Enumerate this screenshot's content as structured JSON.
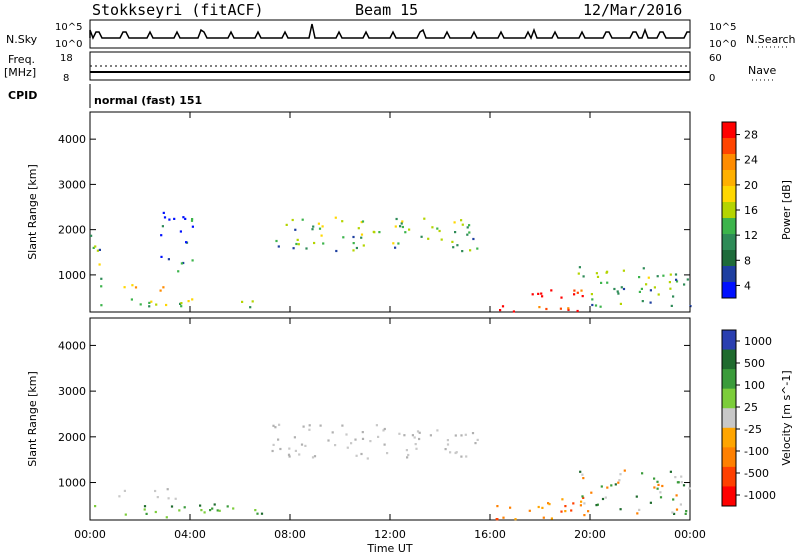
{
  "header": {
    "station": "Stokkseyri (fitACF)",
    "beam": "Beam 15",
    "date": "12/Mar/2016"
  },
  "panels": {
    "nsky": {
      "label": "N.Sky",
      "right_label": "N.Search",
      "left_ticks": [
        "10^5",
        "10^0"
      ],
      "right_ticks": [
        "10^5",
        "10^0"
      ]
    },
    "freq": {
      "label_line1": "Freq.",
      "label_line2": "[MHz]",
      "right_label": "Nave",
      "left_ticks": [
        "18",
        "8"
      ],
      "right_ticks": [
        "60",
        "0"
      ]
    },
    "cpid": {
      "label": "CPID",
      "value": "normal (fast) 151"
    }
  },
  "x_axis": {
    "label": "Time UT",
    "ticks": [
      "00:00",
      "04:00",
      "08:00",
      "12:00",
      "16:00",
      "20:00",
      "00:00"
    ]
  },
  "y_axis": {
    "label": "Slant Range [km]",
    "ticks": [
      "4000",
      "3000",
      "2000",
      "1000"
    ]
  },
  "power_scale": {
    "label": "Power [dB]",
    "ticks": [
      "28",
      "24",
      "20",
      "16",
      "12",
      "8",
      "4"
    ],
    "colors": [
      "#ff0000",
      "#ff4400",
      "#ff8c00",
      "#ffb000",
      "#ffd700",
      "#b4d400",
      "#3cb44b",
      "#2e8b57",
      "#1e6b3a",
      "#1e3fa0",
      "#0010ff"
    ]
  },
  "velocity_scale": {
    "label": "Velocity [m s^-1]",
    "ticks": [
      "1000",
      "500",
      "100",
      "25",
      "-25",
      "-100",
      "-500",
      "-1000"
    ],
    "colors": [
      "#2a3fb0",
      "#1f6b2e",
      "#3a9b3a",
      "#7ccd3a",
      "#c8c8c8",
      "#ffa500",
      "#ff8000",
      "#ff4000",
      "#ff0000"
    ]
  },
  "chart_data": [
    {
      "type": "heatmap",
      "title": "Power",
      "xlabel": "Time UT",
      "ylabel": "Slant Range [km]",
      "ylim": [
        180,
        4600
      ],
      "xlim": [
        0,
        24
      ],
      "series": [
        {
          "t0": 0.0,
          "t1": 0.5,
          "r0": 600,
          "r1": 2000,
          "level": "mid"
        },
        {
          "t0": 0.0,
          "t1": 7.0,
          "r0": 300,
          "r1": 500,
          "level": "mid"
        },
        {
          "t0": 1.2,
          "t1": 3.0,
          "r0": 650,
          "r1": 900,
          "level": "high"
        },
        {
          "t0": 2.8,
          "t1": 4.2,
          "r0": 1100,
          "r1": 2400,
          "level": "low"
        },
        {
          "t0": 7.2,
          "t1": 15.5,
          "r0": 1550,
          "r1": 2300,
          "level": "mid"
        },
        {
          "t0": 16.2,
          "t1": 19.8,
          "r0": 200,
          "r1": 700,
          "level": "max"
        },
        {
          "t0": 19.5,
          "t1": 24.0,
          "r0": 300,
          "r1": 1200,
          "level": "mid"
        }
      ]
    },
    {
      "type": "heatmap",
      "title": "Velocity",
      "xlabel": "Time UT",
      "ylabel": "Slant Range [km]",
      "ylim": [
        180,
        4600
      ],
      "xlim": [
        0,
        24
      ],
      "series": [
        {
          "t0": 0.0,
          "t1": 7.0,
          "r0": 250,
          "r1": 550,
          "level": "positive"
        },
        {
          "t0": 1.0,
          "t1": 3.5,
          "r0": 650,
          "r1": 900,
          "level": "zero"
        },
        {
          "t0": 7.2,
          "t1": 15.5,
          "r0": 1550,
          "r1": 2300,
          "level": "zero"
        },
        {
          "t0": 16.2,
          "t1": 19.8,
          "r0": 200,
          "r1": 750,
          "level": "negative"
        },
        {
          "t0": 19.5,
          "t1": 24.0,
          "r0": 300,
          "r1": 1300,
          "level": "mixed"
        }
      ]
    }
  ]
}
